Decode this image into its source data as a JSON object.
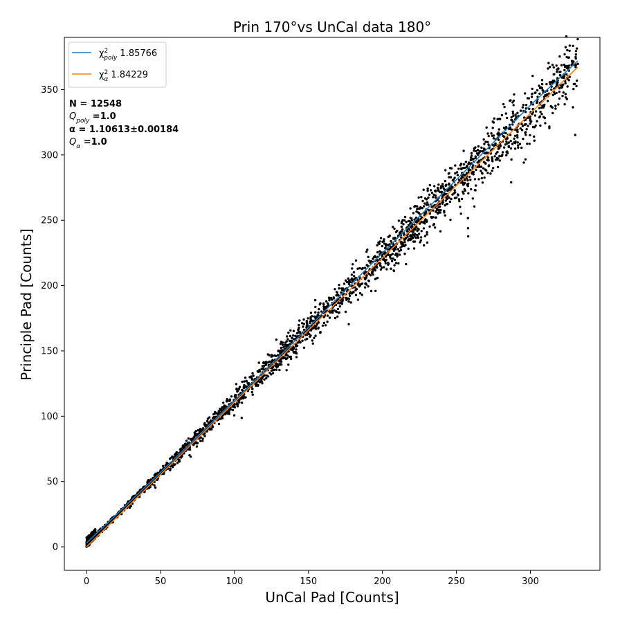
{
  "chart_data": {
    "type": "scatter",
    "title": "Prin 170°vs UnCal data 180°",
    "xlabel": "UnCal Pad [Counts]",
    "ylabel": "Principle Pad [Counts]",
    "xlim": [
      -15,
      347
    ],
    "ylim": [
      -18,
      390
    ],
    "x_ticks": [
      0,
      50,
      100,
      150,
      200,
      250,
      300
    ],
    "y_ticks": [
      0,
      50,
      100,
      150,
      200,
      250,
      300,
      350
    ],
    "grid": false,
    "legend_position": "top-left",
    "point_color": "#000000",
    "n_points_shown": 12548,
    "scatter_trend": {
      "slope": 1.10613,
      "x_range": [
        0,
        332
      ],
      "spread_pct": 0.05,
      "note_points": [
        [
          0,
          2
        ],
        [
          50,
          55
        ],
        [
          100,
          110
        ],
        [
          150,
          165
        ],
        [
          200,
          221
        ],
        [
          250,
          277
        ],
        [
          300,
          331
        ],
        [
          332,
          368
        ]
      ]
    },
    "series": [
      {
        "name": "χ²poly 1.85766",
        "name_main": "χ",
        "name_sup": "2",
        "name_sub": "poly",
        "name_value": " 1.85766",
        "type": "line",
        "color": "#1f77b4",
        "x": [
          0,
          50,
          100,
          150,
          200,
          250,
          300,
          332
        ],
        "y": [
          3,
          57,
          112,
          168,
          225,
          281,
          338,
          372
        ]
      },
      {
        "name": "χ²α 1.84229",
        "name_main": "χ",
        "name_sup": "2",
        "name_sub": "α",
        "name_value": " 1.84229",
        "type": "line",
        "color": "#ff7f0e",
        "x": [
          0,
          50,
          100,
          150,
          200,
          250,
          300,
          332
        ],
        "y": [
          0,
          55.3,
          110.6,
          165.9,
          221.2,
          276.5,
          331.8,
          367.2
        ]
      }
    ],
    "annotations": {
      "n_line": "N = 12548",
      "qpoly_main": "Q",
      "qpoly_sub": "poly",
      "qpoly_value": " =1.0",
      "alpha_line": "α = 1.10613±0.00184",
      "qalpha_main": "Q",
      "qalpha_sub": "α",
      "qalpha_value": " =1.0"
    }
  }
}
